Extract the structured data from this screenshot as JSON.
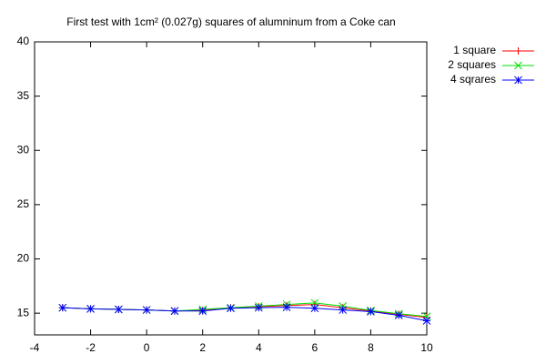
{
  "chart_data": {
    "type": "line",
    "title": "First test with 1cm² (0.027g) squares of alumninum from a Coke can",
    "x": [
      -3,
      -2,
      -1,
      0,
      1,
      2,
      3,
      4,
      5,
      6,
      7,
      8,
      9,
      10
    ],
    "series": [
      {
        "name": "1 square",
        "color": "#ff0000",
        "marker": "plus",
        "values": [
          15.5,
          15.4,
          15.35,
          15.3,
          15.2,
          15.25,
          15.5,
          15.6,
          15.7,
          15.8,
          15.5,
          15.2,
          14.9,
          14.6
        ]
      },
      {
        "name": "2 squares",
        "color": "#00e000",
        "marker": "cross",
        "values": [
          15.5,
          15.4,
          15.35,
          15.3,
          15.2,
          15.35,
          15.5,
          15.65,
          15.8,
          15.95,
          15.65,
          15.25,
          14.95,
          14.7
        ]
      },
      {
        "name": "4 sqrares",
        "color": "#0000ff",
        "marker": "star",
        "values": [
          15.5,
          15.4,
          15.35,
          15.3,
          15.2,
          15.2,
          15.45,
          15.5,
          15.55,
          15.45,
          15.3,
          15.15,
          14.8,
          14.3
        ]
      }
    ],
    "xlim": [
      -4,
      10
    ],
    "xticks": [
      -4,
      -2,
      0,
      2,
      4,
      6,
      8,
      10
    ],
    "ylim": [
      13,
      40
    ],
    "yticks": [
      15,
      20,
      25,
      30,
      35,
      40
    ],
    "legend": "top-right"
  }
}
